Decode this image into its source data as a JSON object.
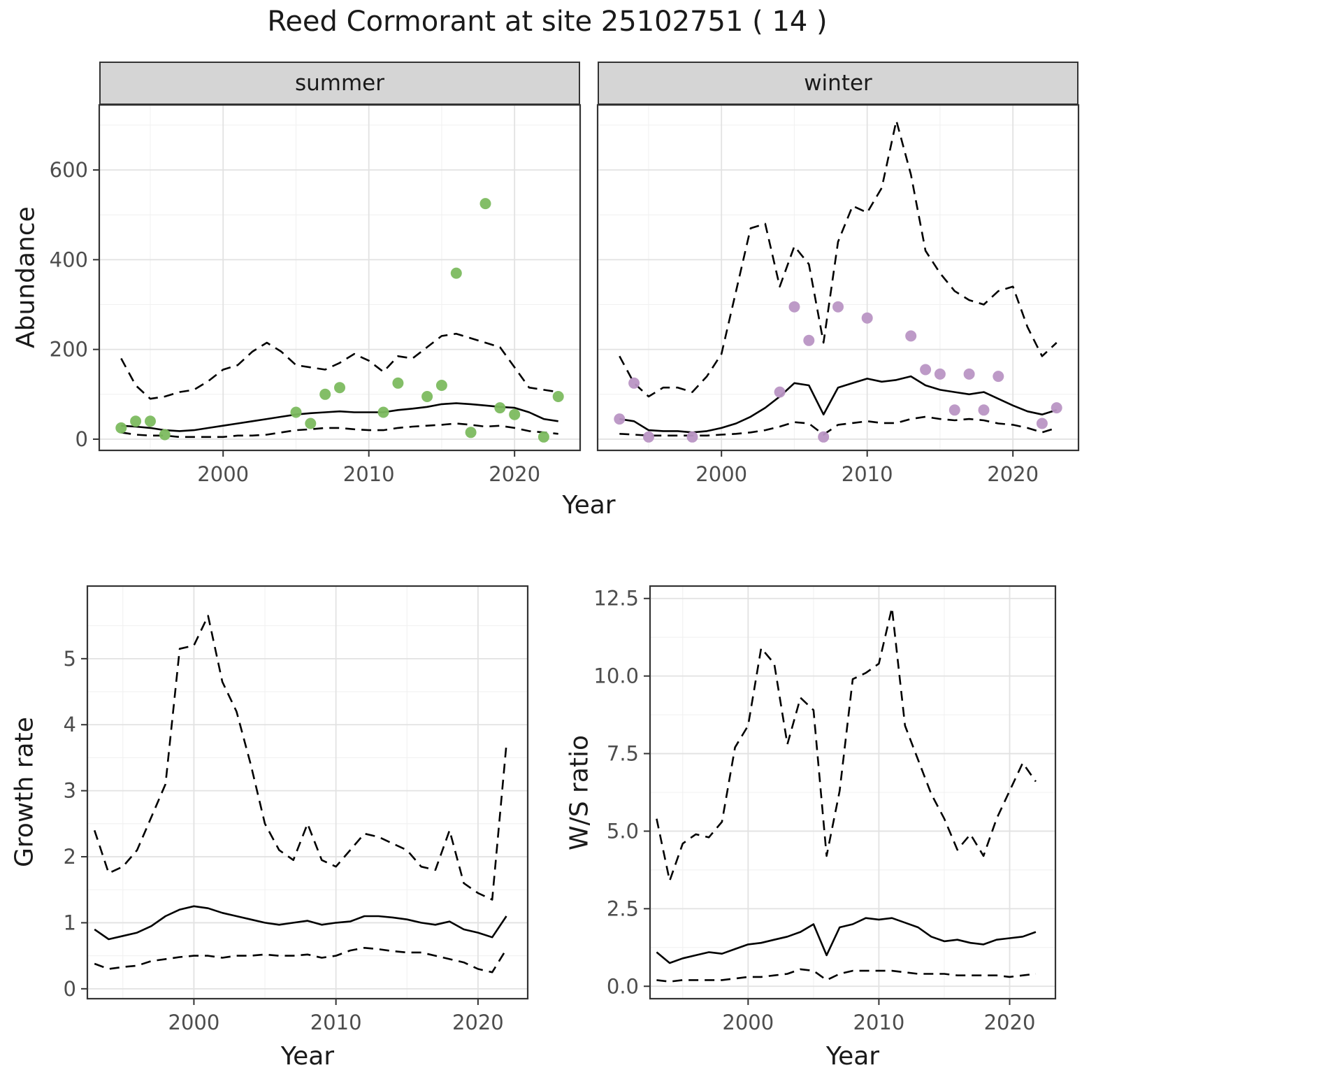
{
  "title": "Reed Cormorant at site 25102751 ( 14 )",
  "colors": {
    "summer_point": "#7CBA5F",
    "winter_point": "#B995C4",
    "line": "#000000",
    "strip_bg": "#D5D5D5",
    "panel_border": "#333333",
    "grid_major": "#E2E2E2",
    "grid_minor": "#F1F1F1",
    "tick_text": "#4D4D4D"
  },
  "chart_data": [
    {
      "id": "abundance-summer",
      "type": "line",
      "facet_label": "summer",
      "xlabel": "Year",
      "ylabel": "Abundance",
      "xlim": [
        1991.5,
        2024.5
      ],
      "ylim": [
        -25,
        745
      ],
      "grid": true,
      "xticks": {
        "values": [
          2000,
          2010,
          2020
        ],
        "labels": [
          "2000",
          "2010",
          "2020"
        ]
      },
      "yticks": {
        "values": [
          0,
          200,
          400,
          600
        ],
        "labels": [
          "0",
          "200",
          "400",
          "600"
        ]
      },
      "points": {
        "name": "observed-counts-summer",
        "color_key": "summer_point",
        "x": [
          1993,
          1994,
          1995,
          1996,
          2005,
          2006,
          2007,
          2008,
          2011,
          2012,
          2014,
          2015,
          2016,
          2017,
          2018,
          2019,
          2020,
          2022,
          2023
        ],
        "y": [
          25,
          40,
          40,
          10,
          60,
          35,
          100,
          115,
          60,
          125,
          95,
          120,
          370,
          15,
          525,
          70,
          55,
          5,
          95
        ]
      },
      "series": [
        {
          "name": "mean",
          "style": "solid",
          "x": [
            1993,
            1994,
            1995,
            1996,
            1997,
            1998,
            1999,
            2000,
            2001,
            2002,
            2003,
            2004,
            2005,
            2006,
            2007,
            2008,
            2009,
            2010,
            2011,
            2012,
            2013,
            2014,
            2015,
            2016,
            2017,
            2018,
            2019,
            2020,
            2021,
            2022,
            2023
          ],
          "y": [
            30,
            28,
            25,
            20,
            18,
            20,
            25,
            30,
            35,
            40,
            45,
            50,
            55,
            58,
            60,
            62,
            60,
            60,
            60,
            65,
            68,
            72,
            78,
            80,
            78,
            75,
            72,
            70,
            60,
            45,
            40
          ]
        },
        {
          "name": "upper_ci",
          "style": "dashed",
          "x": [
            1993,
            1994,
            1995,
            1996,
            1997,
            1998,
            1999,
            2000,
            2001,
            2002,
            2003,
            2004,
            2005,
            2006,
            2007,
            2008,
            2009,
            2010,
            2011,
            2012,
            2013,
            2014,
            2015,
            2016,
            2017,
            2018,
            2019,
            2020,
            2021,
            2022,
            2023
          ],
          "y": [
            180,
            120,
            90,
            95,
            105,
            110,
            130,
            155,
            165,
            195,
            215,
            195,
            165,
            160,
            155,
            170,
            190,
            175,
            150,
            185,
            180,
            205,
            230,
            235,
            225,
            215,
            205,
            160,
            115,
            110,
            105
          ]
        },
        {
          "name": "lower_ci",
          "style": "dashed",
          "x": [
            1993,
            1994,
            1995,
            1996,
            1997,
            1998,
            1999,
            2000,
            2001,
            2002,
            2003,
            2004,
            2005,
            2006,
            2007,
            2008,
            2009,
            2010,
            2011,
            2012,
            2013,
            2014,
            2015,
            2016,
            2017,
            2018,
            2019,
            2020,
            2021,
            2022,
            2023
          ],
          "y": [
            15,
            10,
            8,
            8,
            5,
            5,
            5,
            5,
            8,
            8,
            10,
            15,
            20,
            22,
            25,
            25,
            22,
            20,
            20,
            25,
            28,
            30,
            32,
            35,
            32,
            28,
            30,
            25,
            18,
            15,
            12
          ]
        }
      ]
    },
    {
      "id": "abundance-winter",
      "type": "line",
      "facet_label": "winter",
      "xlabel": "Year",
      "ylabel": "Abundance",
      "xlim": [
        1991.5,
        2024.5
      ],
      "ylim": [
        -25,
        745
      ],
      "grid": true,
      "xticks": {
        "values": [
          2000,
          2010,
          2020
        ],
        "labels": [
          "2000",
          "2010",
          "2020"
        ]
      },
      "yticks": {
        "values": [
          0,
          200,
          400,
          600
        ],
        "labels": [
          "0",
          "200",
          "400",
          "600"
        ]
      },
      "points": {
        "name": "observed-counts-winter",
        "color_key": "winter_point",
        "x": [
          1993,
          1994,
          1995,
          1998,
          2004,
          2005,
          2006,
          2007,
          2008,
          2010,
          2013,
          2014,
          2015,
          2016,
          2017,
          2018,
          2019,
          2022,
          2023
        ],
        "y": [
          45,
          125,
          5,
          5,
          105,
          295,
          220,
          5,
          295,
          270,
          230,
          155,
          145,
          65,
          145,
          65,
          140,
          35,
          70
        ]
      },
      "series": [
        {
          "name": "mean",
          "style": "solid",
          "x": [
            1993,
            1994,
            1995,
            1996,
            1997,
            1998,
            1999,
            2000,
            2001,
            2002,
            2003,
            2004,
            2005,
            2006,
            2007,
            2008,
            2009,
            2010,
            2011,
            2012,
            2013,
            2014,
            2015,
            2016,
            2017,
            2018,
            2019,
            2020,
            2021,
            2022,
            2023
          ],
          "y": [
            45,
            40,
            20,
            18,
            18,
            15,
            18,
            25,
            35,
            50,
            70,
            95,
            125,
            120,
            55,
            115,
            125,
            135,
            128,
            132,
            140,
            120,
            110,
            105,
            100,
            105,
            90,
            75,
            62,
            55,
            65
          ]
        },
        {
          "name": "upper_ci",
          "style": "dashed",
          "x": [
            1993,
            1994,
            1995,
            1996,
            1997,
            1998,
            1999,
            2000,
            2001,
            2002,
            2003,
            2004,
            2005,
            2006,
            2007,
            2008,
            2009,
            2010,
            2011,
            2012,
            2013,
            2014,
            2015,
            2016,
            2017,
            2018,
            2019,
            2020,
            2021,
            2022,
            2023
          ],
          "y": [
            185,
            125,
            95,
            115,
            115,
            105,
            140,
            190,
            330,
            470,
            480,
            340,
            430,
            390,
            215,
            440,
            520,
            505,
            560,
            710,
            590,
            420,
            370,
            330,
            310,
            300,
            330,
            340,
            250,
            185,
            215
          ]
        },
        {
          "name": "lower_ci",
          "style": "dashed",
          "x": [
            1993,
            1994,
            1995,
            1996,
            1997,
            1998,
            1999,
            2000,
            2001,
            2002,
            2003,
            2004,
            2005,
            2006,
            2007,
            2008,
            2009,
            2010,
            2011,
            2012,
            2013,
            2014,
            2015,
            2016,
            2017,
            2018,
            2019,
            2020,
            2021,
            2022,
            2023
          ],
          "y": [
            12,
            10,
            8,
            8,
            8,
            8,
            8,
            10,
            12,
            15,
            20,
            28,
            38,
            35,
            10,
            32,
            36,
            40,
            36,
            36,
            45,
            50,
            45,
            42,
            45,
            42,
            35,
            32,
            25,
            15,
            25
          ]
        }
      ]
    },
    {
      "id": "growth-rate",
      "type": "line",
      "facet_label": "",
      "xlabel": "Year",
      "ylabel": "Growth rate",
      "xlim": [
        1992.5,
        2023.5
      ],
      "ylim": [
        -0.15,
        6.1
      ],
      "grid": true,
      "xticks": {
        "values": [
          2000,
          2010,
          2020
        ],
        "labels": [
          "2000",
          "2010",
          "2020"
        ]
      },
      "yticks": {
        "values": [
          0,
          1,
          2,
          3,
          4,
          5
        ],
        "labels": [
          "0",
          "1",
          "2",
          "3",
          "4",
          "5"
        ]
      },
      "points": null,
      "series": [
        {
          "name": "mean",
          "style": "solid",
          "x": [
            1993,
            1994,
            1995,
            1996,
            1997,
            1998,
            1999,
            2000,
            2001,
            2002,
            2003,
            2004,
            2005,
            2006,
            2007,
            2008,
            2009,
            2010,
            2011,
            2012,
            2013,
            2014,
            2015,
            2016,
            2017,
            2018,
            2019,
            2020,
            2021,
            2022
          ],
          "y": [
            0.9,
            0.75,
            0.8,
            0.85,
            0.95,
            1.1,
            1.2,
            1.25,
            1.22,
            1.15,
            1.1,
            1.05,
            1.0,
            0.97,
            1.0,
            1.03,
            0.97,
            1.0,
            1.02,
            1.1,
            1.1,
            1.08,
            1.05,
            1.0,
            0.97,
            1.02,
            0.9,
            0.85,
            0.78,
            1.1
          ]
        },
        {
          "name": "upper_ci",
          "style": "dashed",
          "x": [
            1993,
            1994,
            1995,
            1996,
            1997,
            1998,
            1999,
            2000,
            2001,
            2002,
            2003,
            2004,
            2005,
            2006,
            2007,
            2008,
            2009,
            2010,
            2011,
            2012,
            2013,
            2014,
            2015,
            2016,
            2017,
            2018,
            2019,
            2020,
            2021,
            2022
          ],
          "y": [
            2.4,
            1.75,
            1.85,
            2.1,
            2.6,
            3.1,
            5.15,
            5.2,
            5.65,
            4.65,
            4.2,
            3.4,
            2.5,
            2.1,
            1.95,
            2.5,
            1.95,
            1.85,
            2.1,
            2.35,
            2.3,
            2.2,
            2.1,
            1.85,
            1.8,
            2.4,
            1.6,
            1.45,
            1.35,
            3.7
          ]
        },
        {
          "name": "lower_ci",
          "style": "dashed",
          "x": [
            1993,
            1994,
            1995,
            1996,
            1997,
            1998,
            1999,
            2000,
            2001,
            2002,
            2003,
            2004,
            2005,
            2006,
            2007,
            2008,
            2009,
            2010,
            2011,
            2012,
            2013,
            2014,
            2015,
            2016,
            2017,
            2018,
            2019,
            2020,
            2021,
            2022
          ],
          "y": [
            0.38,
            0.3,
            0.33,
            0.35,
            0.42,
            0.45,
            0.48,
            0.5,
            0.5,
            0.47,
            0.5,
            0.5,
            0.52,
            0.5,
            0.5,
            0.52,
            0.47,
            0.5,
            0.58,
            0.62,
            0.6,
            0.57,
            0.55,
            0.55,
            0.5,
            0.45,
            0.4,
            0.3,
            0.25,
            0.6
          ]
        }
      ]
    },
    {
      "id": "ws-ratio",
      "type": "line",
      "facet_label": "",
      "xlabel": "Year",
      "ylabel": "W/S ratio",
      "xlim": [
        1992.5,
        2023.5
      ],
      "ylim": [
        -0.4,
        12.9
      ],
      "grid": true,
      "xticks": {
        "values": [
          2000,
          2010,
          2020
        ],
        "labels": [
          "2000",
          "2010",
          "2020"
        ]
      },
      "yticks": {
        "values": [
          0,
          2.5,
          5,
          7.5,
          10,
          12.5
        ],
        "labels": [
          "0.0",
          "2.5",
          "5.0",
          "7.5",
          "10.0",
          "12.5"
        ]
      },
      "points": null,
      "series": [
        {
          "name": "mean",
          "style": "solid",
          "x": [
            1993,
            1994,
            1995,
            1996,
            1997,
            1998,
            1999,
            2000,
            2001,
            2002,
            2003,
            2004,
            2005,
            2006,
            2007,
            2008,
            2009,
            2010,
            2011,
            2012,
            2013,
            2014,
            2015,
            2016,
            2017,
            2018,
            2019,
            2020,
            2021,
            2022
          ],
          "y": [
            1.1,
            0.75,
            0.9,
            1.0,
            1.1,
            1.05,
            1.2,
            1.35,
            1.4,
            1.5,
            1.6,
            1.75,
            2.0,
            1.0,
            1.9,
            2.0,
            2.2,
            2.15,
            2.2,
            2.05,
            1.9,
            1.6,
            1.45,
            1.5,
            1.4,
            1.35,
            1.5,
            1.55,
            1.6,
            1.75
          ]
        },
        {
          "name": "upper_ci",
          "style": "dashed",
          "x": [
            1993,
            1994,
            1995,
            1996,
            1997,
            1998,
            1999,
            2000,
            2001,
            2002,
            2003,
            2004,
            2005,
            2006,
            2007,
            2008,
            2009,
            2010,
            2011,
            2012,
            2013,
            2014,
            2015,
            2016,
            2017,
            2018,
            2019,
            2020,
            2021,
            2022
          ],
          "y": [
            5.4,
            3.4,
            4.6,
            4.9,
            4.8,
            5.3,
            7.7,
            8.4,
            10.9,
            10.4,
            7.8,
            9.3,
            8.9,
            4.2,
            6.3,
            9.9,
            10.1,
            10.4,
            12.2,
            8.4,
            7.3,
            6.2,
            5.4,
            4.4,
            4.9,
            4.2,
            5.4,
            6.3,
            7.2,
            6.6
          ]
        },
        {
          "name": "lower_ci",
          "style": "dashed",
          "x": [
            1993,
            1994,
            1995,
            1996,
            1997,
            1998,
            1999,
            2000,
            2001,
            2002,
            2003,
            2004,
            2005,
            2006,
            2007,
            2008,
            2009,
            2010,
            2011,
            2012,
            2013,
            2014,
            2015,
            2016,
            2017,
            2018,
            2019,
            2020,
            2021,
            2022
          ],
          "y": [
            0.2,
            0.15,
            0.2,
            0.2,
            0.2,
            0.2,
            0.25,
            0.3,
            0.3,
            0.35,
            0.4,
            0.55,
            0.5,
            0.2,
            0.4,
            0.5,
            0.5,
            0.5,
            0.5,
            0.45,
            0.4,
            0.4,
            0.4,
            0.35,
            0.35,
            0.35,
            0.35,
            0.3,
            0.35,
            0.4
          ]
        }
      ]
    }
  ]
}
